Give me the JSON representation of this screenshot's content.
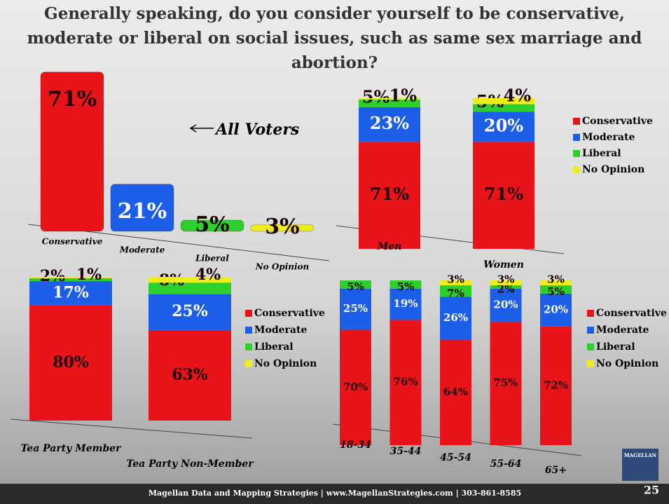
{
  "slide": {
    "title": "Generally speaking, do you consider yourself to be conservative, moderate or liberal on social issues, such as same sex marriage and abortion?",
    "footer": "Magellan Data and Mapping Strategies | www.MagellanStrategies.com | 303-861-8585",
    "page_number": "25",
    "logo": "MAGELLAN"
  },
  "chart_data": [
    {
      "type": "bar",
      "annotation": "All Voters",
      "categories": [
        "Conservative",
        "Moderate",
        "Liberal",
        "No Opinion"
      ],
      "values": [
        71,
        21,
        5,
        3
      ],
      "value_labels": [
        "71%",
        "21%",
        "5%",
        "3%"
      ],
      "colors": [
        "#e8141a",
        "#1d5ee8",
        "#2ccf2c",
        "#eded1a"
      ]
    },
    {
      "type": "stacked_bar",
      "categories": [
        "Men",
        "Women"
      ],
      "series": [
        {
          "name": "Conservative",
          "color": "#e8141a",
          "values": [
            71,
            71
          ],
          "value_labels": [
            "71%",
            "71%"
          ]
        },
        {
          "name": "Moderate",
          "color": "#1d5ee8",
          "values": [
            23,
            20
          ],
          "value_labels": [
            "23%",
            "20%"
          ]
        },
        {
          "name": "Liberal",
          "color": "#2ccf2c",
          "values": [
            5,
            5
          ],
          "value_labels": [
            "5%",
            "5%"
          ]
        },
        {
          "name": "No Opinion",
          "color": "#eded1a",
          "values": [
            1,
            4
          ],
          "value_labels": [
            "1%",
            "4%"
          ]
        }
      ]
    },
    {
      "type": "stacked_bar",
      "categories": [
        "Tea Party Member",
        "Tea Party Non-Member"
      ],
      "series": [
        {
          "name": "Conservative",
          "color": "#e8141a",
          "values": [
            80,
            63
          ],
          "value_labels": [
            "80%",
            "63%"
          ]
        },
        {
          "name": "Moderate",
          "color": "#1d5ee8",
          "values": [
            17,
            25
          ],
          "value_labels": [
            "17%",
            "25%"
          ]
        },
        {
          "name": "Liberal",
          "color": "#2ccf2c",
          "values": [
            2,
            8
          ],
          "value_labels": [
            "2%",
            "8%"
          ]
        },
        {
          "name": "No Opinion",
          "color": "#eded1a",
          "values": [
            1,
            4
          ],
          "value_labels": [
            "1%",
            "4%"
          ]
        }
      ]
    },
    {
      "type": "stacked_bar",
      "categories": [
        "18-34",
        "35-44",
        "45-54",
        "55-64",
        "65+"
      ],
      "series": [
        {
          "name": "Conservative",
          "color": "#e8141a",
          "values": [
            70,
            76,
            64,
            75,
            72
          ],
          "value_labels": [
            "70%",
            "76%",
            "64%",
            "75%",
            "72%"
          ]
        },
        {
          "name": "Moderate",
          "color": "#1d5ee8",
          "values": [
            25,
            19,
            26,
            20,
            20
          ],
          "value_labels": [
            "25%",
            "19%",
            "26%",
            "20%",
            "20%"
          ]
        },
        {
          "name": "Liberal",
          "color": "#2ccf2c",
          "values": [
            5,
            5,
            7,
            2,
            5
          ],
          "value_labels": [
            "5%",
            "5%",
            "7%",
            "2%",
            "5%"
          ]
        },
        {
          "name": "No Opinion",
          "color": "#eded1a",
          "values": [
            0,
            0,
            3,
            3,
            3
          ],
          "value_labels": [
            null,
            null,
            "3%",
            "3%",
            "3%"
          ]
        }
      ]
    }
  ]
}
